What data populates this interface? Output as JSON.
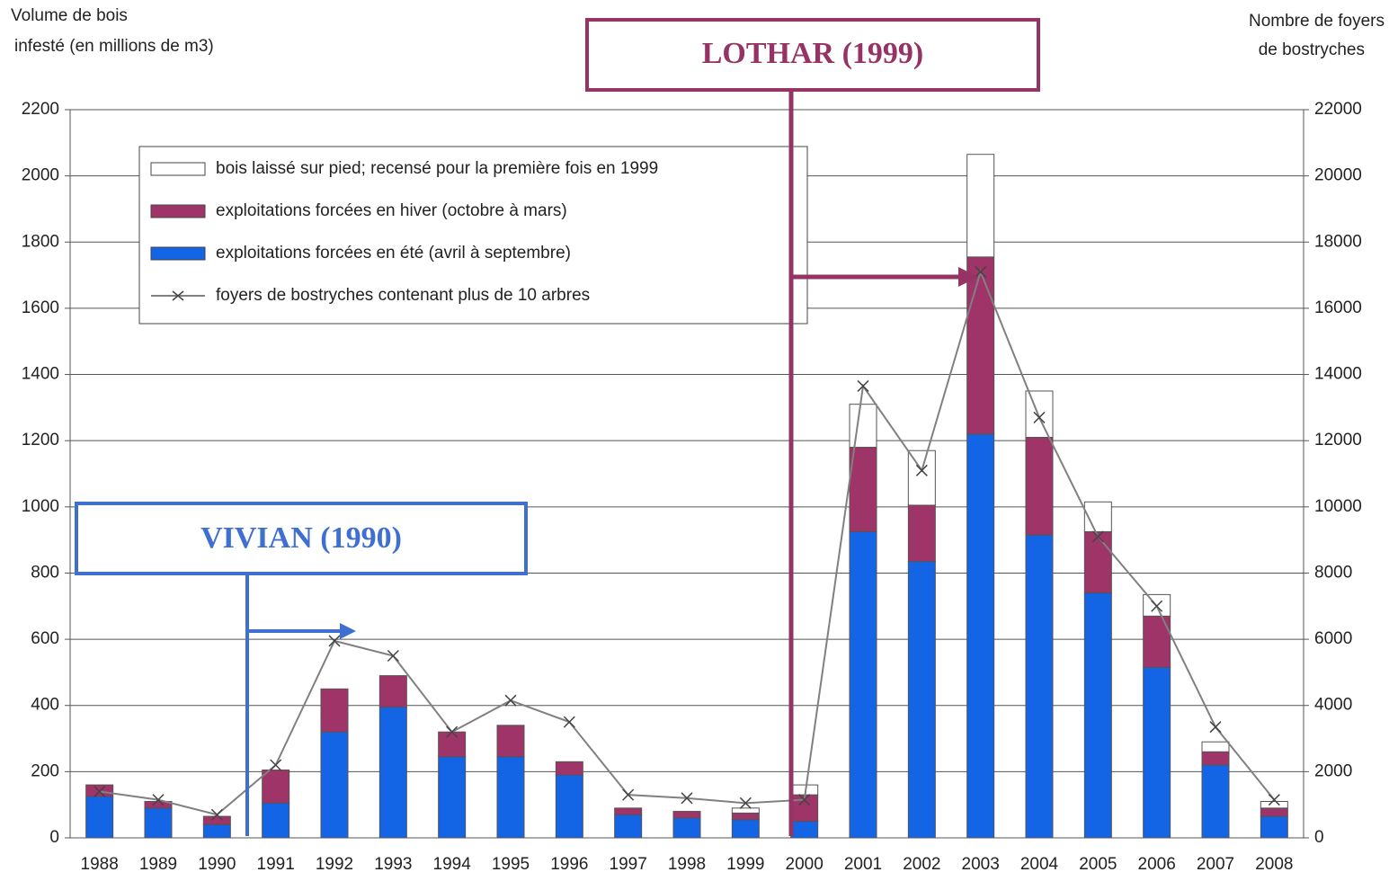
{
  "chart_data": {
    "type": "stacked-bar-line",
    "y_label": [
      "Volume de bois",
      "infesté (en millions de m3)"
    ],
    "y2_label": [
      "Nombre de foyers",
      "de bostryches"
    ],
    "categories": [
      "1988",
      "1989",
      "1990",
      "1991",
      "1992",
      "1993",
      "1994",
      "1995",
      "1996",
      "1997",
      "1998",
      "1999",
      "2000",
      "2001",
      "2002",
      "2003",
      "2004",
      "2005",
      "2006",
      "2007",
      "2008"
    ],
    "series": [
      {
        "name": "exploitations forcées en été (avril à septembre)",
        "color": "#1464e6",
        "type": "bar",
        "values": [
          125,
          90,
          40,
          105,
          320,
          395,
          245,
          245,
          190,
          70,
          60,
          55,
          50,
          925,
          835,
          1220,
          915,
          740,
          515,
          220,
          65
        ]
      },
      {
        "name": "exploitations forcées en hiver (octobre à mars)",
        "color": "#9e3468",
        "type": "bar",
        "values": [
          35,
          20,
          25,
          100,
          130,
          95,
          75,
          95,
          40,
          20,
          20,
          20,
          80,
          255,
          170,
          535,
          295,
          185,
          155,
          40,
          25
        ]
      },
      {
        "name": "bois laissé sur pied; recensé pour la première fois en 1999",
        "color": "#ffffff",
        "type": "bar",
        "values": [
          0,
          0,
          0,
          0,
          0,
          0,
          0,
          0,
          0,
          0,
          0,
          15,
          30,
          130,
          165,
          310,
          140,
          90,
          65,
          30,
          20
        ]
      },
      {
        "name": "foyers de bostryches contenant plus de 10 arbres",
        "color": "#808080",
        "type": "line",
        "axis": "y2",
        "values": [
          1400,
          1150,
          700,
          2200,
          5950,
          5500,
          3200,
          4150,
          3500,
          1300,
          1200,
          1050,
          1150,
          13650,
          11100,
          17100,
          12700,
          9100,
          7000,
          3350,
          1150
        ]
      }
    ],
    "ylim": [
      0,
      2200
    ],
    "yticks": [
      0,
      200,
      400,
      600,
      800,
      1000,
      1200,
      1400,
      1600,
      1800,
      2000,
      2200
    ],
    "y2lim": [
      0,
      22000
    ],
    "y2ticks": [
      0,
      2000,
      4000,
      6000,
      8000,
      10000,
      12000,
      14000,
      16000,
      18000,
      20000,
      22000
    ],
    "grid": true,
    "annotations": [
      {
        "text": "VIVIAN (1990)",
        "color": "#3f6fd0"
      },
      {
        "text": "LOTHAR (1999)",
        "color": "#953464"
      }
    ]
  }
}
